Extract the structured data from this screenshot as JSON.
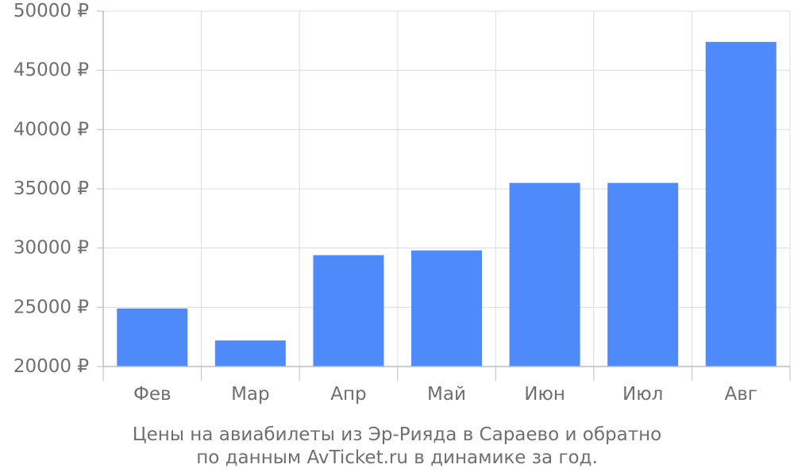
{
  "chart_data": {
    "type": "bar",
    "categories": [
      "Фев",
      "Мар",
      "Апр",
      "Май",
      "Июн",
      "Июл",
      "Авг"
    ],
    "values": [
      24900,
      22200,
      29400,
      29800,
      35500,
      35500,
      47400
    ],
    "ylim": [
      20000,
      50000
    ],
    "yticks": [
      20000,
      25000,
      30000,
      35000,
      40000,
      45000,
      50000
    ],
    "y_tick_suffix": " ₽",
    "bar_color": "#4e8af9",
    "grid": true,
    "title": "Цены на авиабилеты из Эр-Рияда в Сараево и обратно",
    "subtitle": "по данным AvTicket.ru в динамике за год."
  }
}
